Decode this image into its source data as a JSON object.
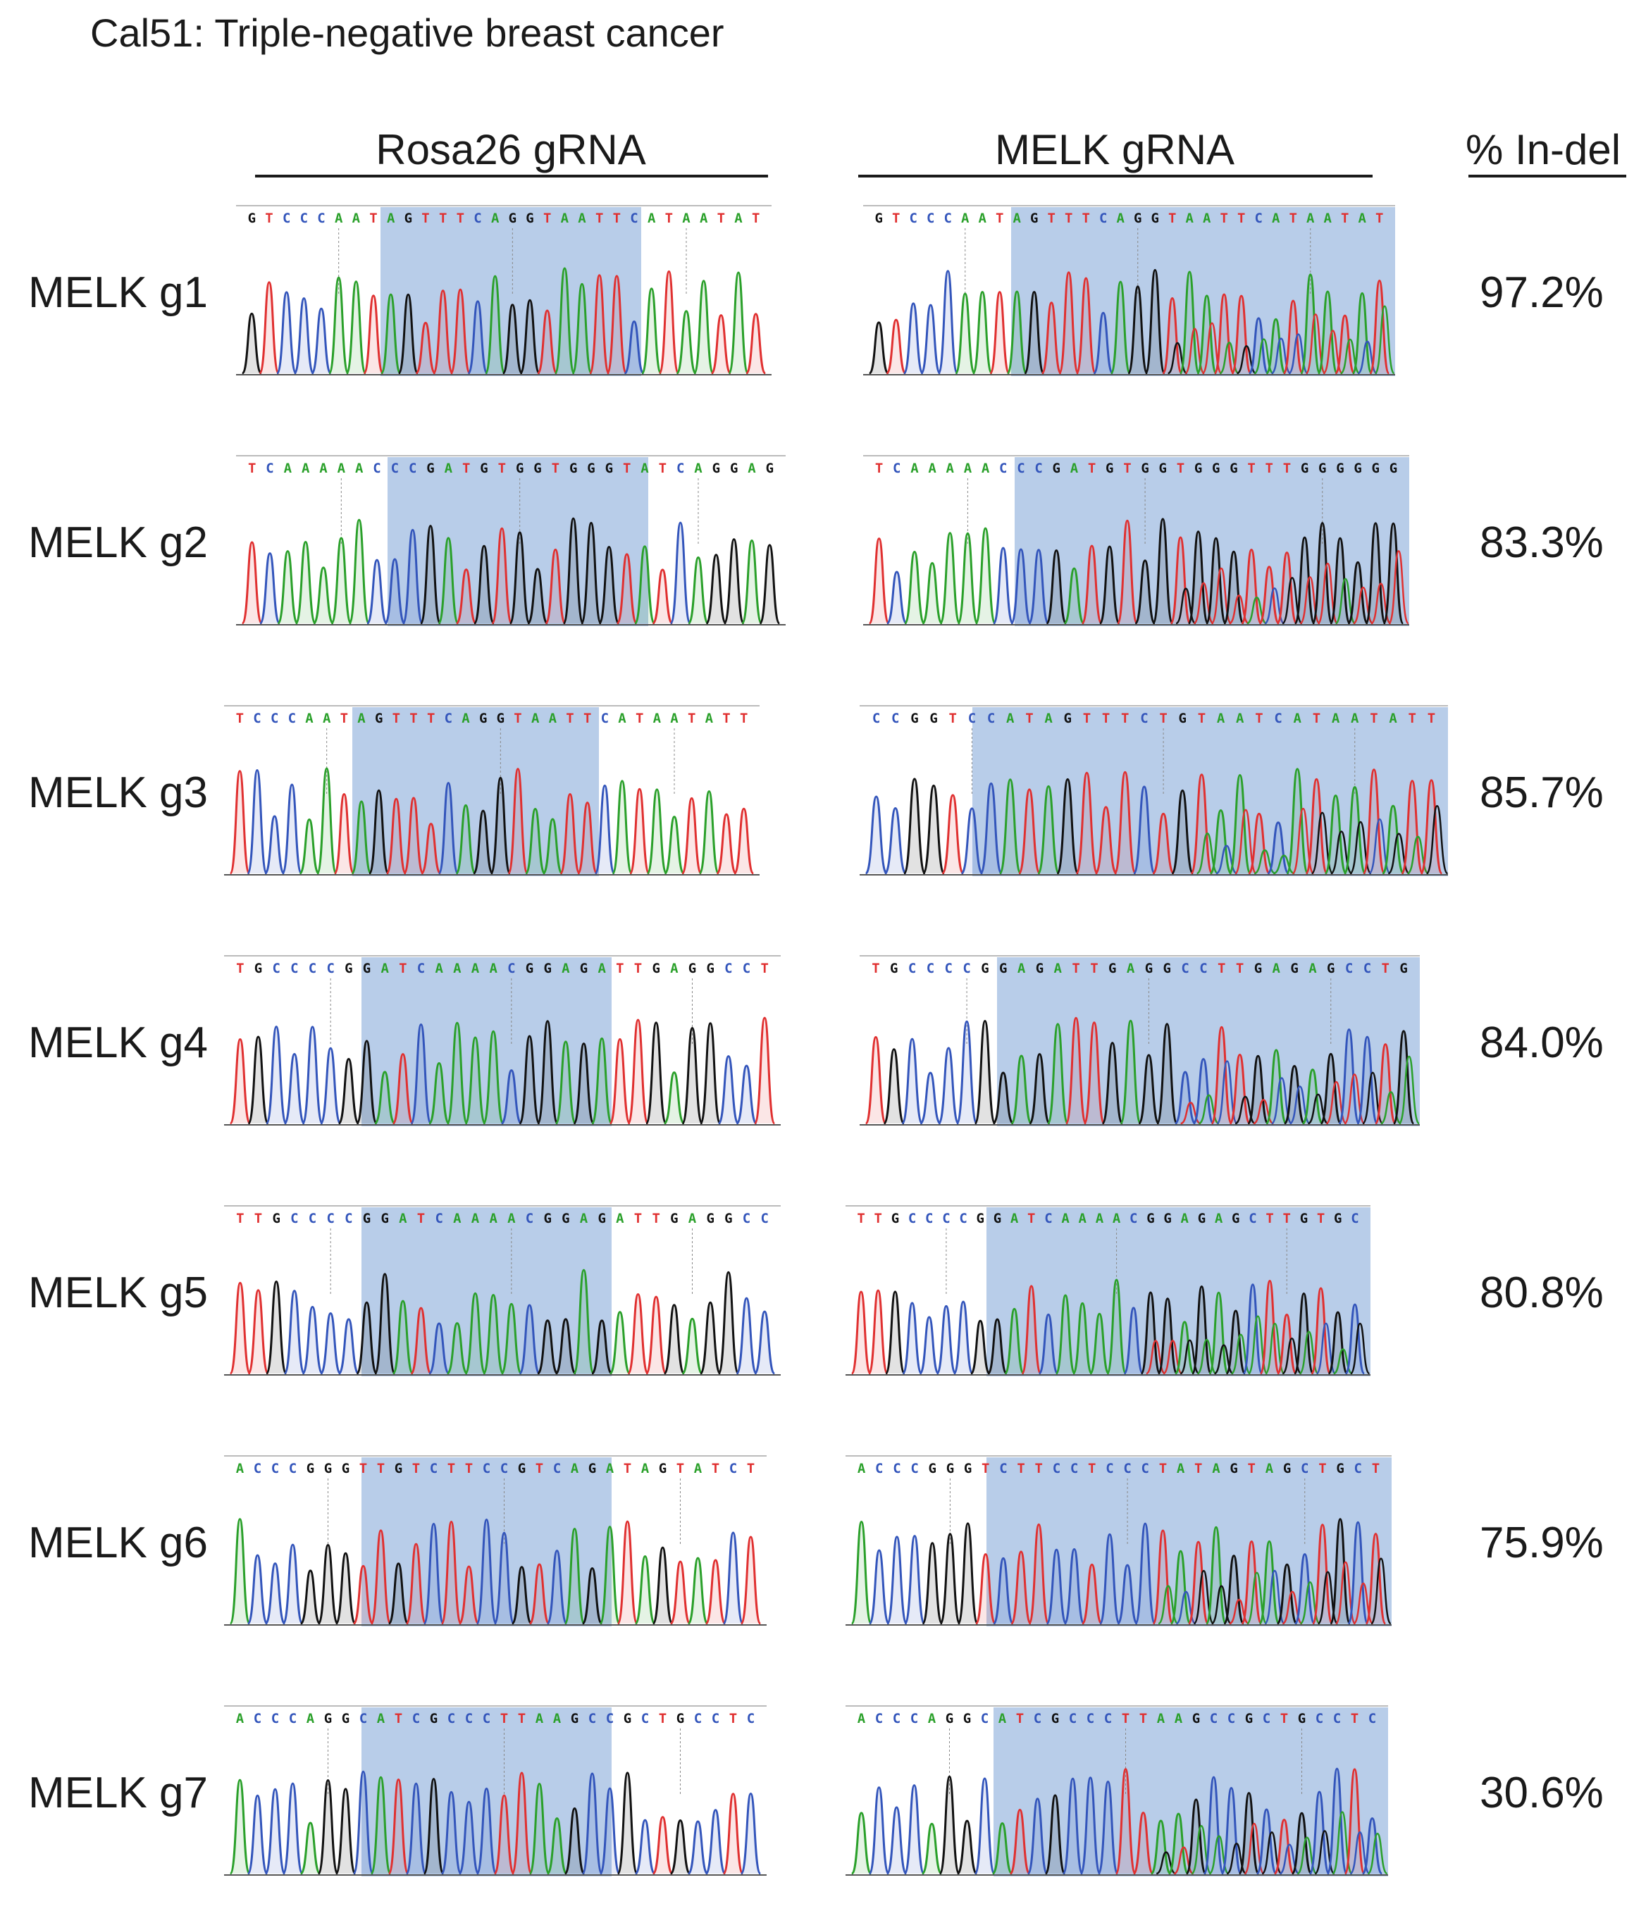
{
  "title": "Cal51: Triple-negative breast cancer",
  "columns": {
    "rosa": "Rosa26 gRNA",
    "melk": "MELK gRNA",
    "indel": "% In-del"
  },
  "base_colors": {
    "A": "#2aa02a",
    "C": "#3355bb",
    "G": "#111111",
    "T": "#e03030"
  },
  "highlight_color": "#b8cde9",
  "rows": [
    {
      "label": "MELK g1",
      "indel": "97.2%",
      "rosa_seq": "GTCCCAATAGTTTCAGGTAATTCATAATAT",
      "melk_seq": "GTCCCAATAGTTTCAGGTAATTCATAATAT"
    },
    {
      "label": "MELK g2",
      "indel": "83.3%",
      "rosa_seq": "TCAAAAACCCGATGTGGTGGGTATCAGGAG",
      "melk_seq": "TCAAAAACCCGATGTGGTGGGTTTGGGGGG"
    },
    {
      "label": "MELK g3",
      "indel": "85.7%",
      "rosa_seq": "TCCCAATAGTTTCAGGTAATTCATAATATT",
      "melk_seq": "CCGGTCCATAGTTTCTGTAATCATAATATT"
    },
    {
      "label": "MELK g4",
      "indel": "84.0%",
      "rosa_seq": "TGCCCCGGATCAAAACGGAGATTGAGGCCT",
      "melk_seq": "TGCCCCGGAGATTGAGGCCTTGAGAGCCTG"
    },
    {
      "label": "MELK g5",
      "indel": "80.8%",
      "rosa_seq": "TTGCCCCGGATCAAAACGGAGATTGAGGCC",
      "melk_seq": "TTGCCCCGGATCAAAACGGAGAGCTTGTGC"
    },
    {
      "label": "MELK g6",
      "indel": "75.9%",
      "rosa_seq": "ACCCGGGTTGTCTTCCGTCAGATAGTATCT",
      "melk_seq": "ACCCGGGTCTTCCTCCCTATAGTAGCTGCT"
    },
    {
      "label": "MELK g7",
      "indel": "30.6%",
      "rosa_seq": "ACCCAGGCATCGCCCTTAAGCCGCTGCCTC",
      "melk_seq": "ACCCAGGCATCGCCCTTAAGCCGCTGCCTC"
    }
  ]
}
